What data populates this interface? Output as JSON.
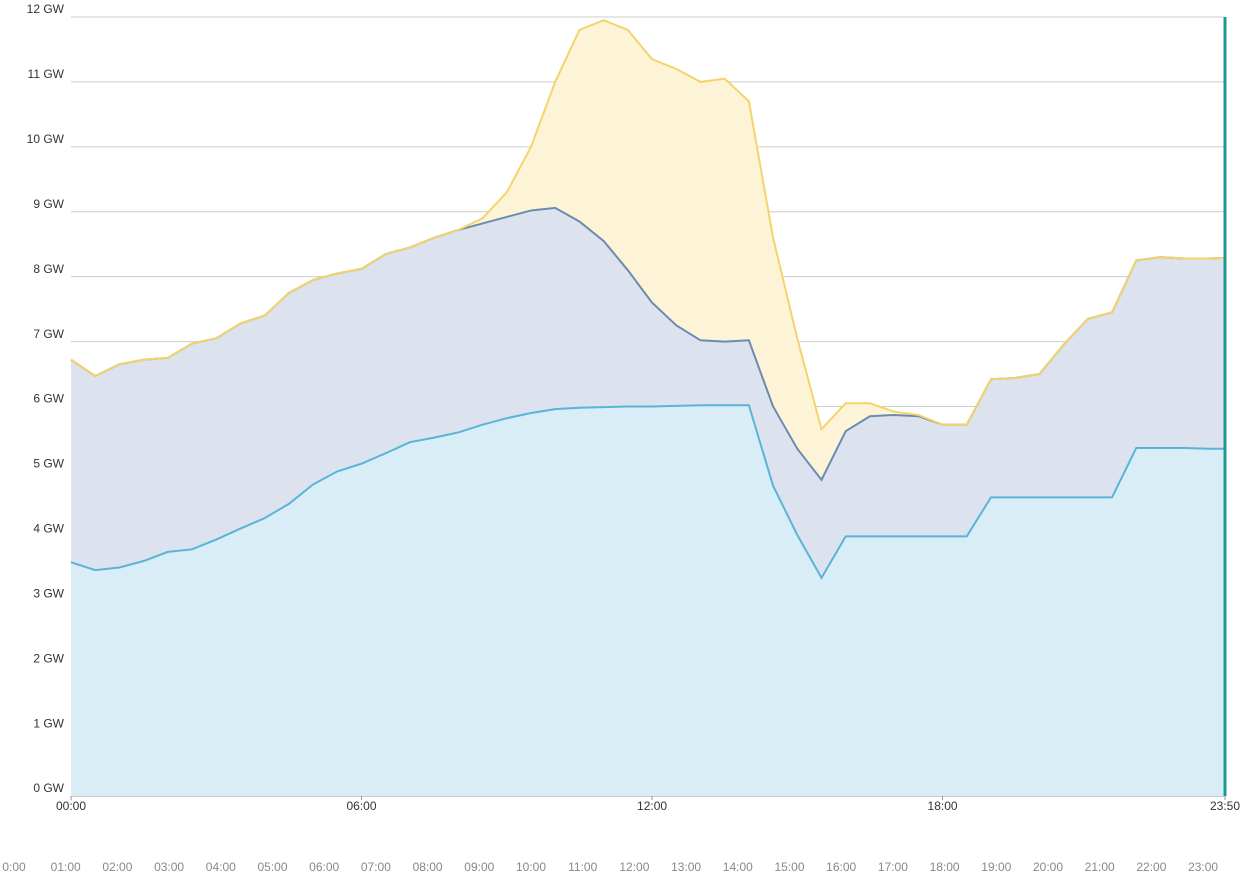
{
  "chart_data": {
    "type": "stacked_area",
    "x": [
      "00:00",
      "00:30",
      "01:00",
      "01:30",
      "02:00",
      "02:30",
      "03:00",
      "03:30",
      "04:00",
      "04:30",
      "05:00",
      "05:30",
      "06:00",
      "06:30",
      "07:00",
      "07:30",
      "08:00",
      "08:30",
      "09:00",
      "09:30",
      "10:00",
      "10:30",
      "11:00",
      "11:30",
      "12:00",
      "12:30",
      "13:00",
      "13:30",
      "14:00",
      "14:30",
      "15:00",
      "15:30",
      "16:00",
      "16:30",
      "17:00",
      "17:30",
      "18:00",
      "18:30",
      "19:00",
      "19:30",
      "20:00",
      "20:30",
      "21:00",
      "21:30",
      "22:00",
      "22:30",
      "23:00",
      "23:30",
      "23:50"
    ],
    "series": [
      {
        "color": "#5ab4d6",
        "fill": "#d9edf7",
        "values": [
          3.6,
          3.48,
          3.52,
          3.62,
          3.76,
          3.8,
          3.95,
          4.12,
          4.28,
          4.5,
          4.8,
          5.0,
          5.12,
          5.28,
          5.45,
          5.52,
          5.6,
          5.72,
          5.82,
          5.9,
          5.96,
          5.98,
          5.99,
          6.0,
          6.0,
          6.01,
          6.02,
          6.02,
          6.02,
          4.78,
          4.02,
          3.36,
          4.0,
          4.0,
          4.0,
          4.0,
          4.0,
          4.0,
          4.6,
          4.6,
          4.6,
          4.6,
          4.6,
          4.6,
          5.36,
          5.36,
          5.36,
          5.35,
          5.35
        ]
      },
      {
        "color": "#6a8cb0",
        "fill": "#dde3ee",
        "values": [
          3.12,
          2.99,
          3.13,
          3.1,
          2.99,
          3.17,
          3.1,
          3.16,
          3.12,
          3.25,
          3.15,
          3.05,
          3.0,
          3.07,
          3.0,
          3.08,
          3.12,
          3.1,
          3.1,
          3.12,
          3.1,
          2.87,
          2.56,
          2.1,
          1.6,
          1.24,
          1.0,
          0.98,
          1.0,
          1.22,
          1.33,
          1.51,
          1.62,
          1.85,
          1.87,
          1.85,
          1.72,
          1.72,
          1.82,
          1.84,
          1.9,
          2.35,
          2.75,
          2.85,
          2.89,
          2.94,
          2.92,
          2.93,
          2.94
        ]
      },
      {
        "color": "#f4d46a",
        "fill": "#fdf4d8",
        "values": [
          0,
          0,
          0,
          0,
          0,
          0,
          0,
          0,
          0,
          0,
          0,
          0,
          0,
          0,
          0,
          0,
          0,
          0.08,
          0.38,
          0.98,
          1.94,
          2.95,
          3.4,
          3.7,
          3.75,
          3.95,
          3.98,
          4.05,
          3.68,
          2.6,
          1.7,
          0.78,
          0.43,
          0.2,
          0.05,
          0.02,
          0,
          0,
          0,
          0,
          0,
          0,
          0,
          0,
          0,
          0,
          0,
          0,
          0
        ]
      }
    ],
    "xlim": [
      "00:00",
      "23:50"
    ],
    "xticks": [
      "00:00",
      "06:00",
      "12:00",
      "18:00",
      "23:50"
    ],
    "ylim": [
      0,
      12
    ],
    "yticks": [
      {
        "value": 0,
        "label": "0 GW"
      },
      {
        "value": 1,
        "label": "1 GW"
      },
      {
        "value": 2,
        "label": "2 GW"
      },
      {
        "value": 3,
        "label": "3 GW"
      },
      {
        "value": 4,
        "label": "4 GW"
      },
      {
        "value": 5,
        "label": "5 GW"
      },
      {
        "value": 6,
        "label": "6 GW"
      },
      {
        "value": 7,
        "label": "7 GW"
      },
      {
        "value": 8,
        "label": "8 GW"
      },
      {
        "value": 9,
        "label": "9 GW"
      },
      {
        "value": 10,
        "label": "10 GW"
      },
      {
        "value": 11,
        "label": "11 GW"
      },
      {
        "value": 12,
        "label": "12 GW"
      }
    ],
    "grid": true,
    "navigator_labels": [
      "0:00",
      "01:00",
      "02:00",
      "03:00",
      "04:00",
      "05:00",
      "06:00",
      "07:00",
      "08:00",
      "09:00",
      "10:00",
      "11:00",
      "12:00",
      "13:00",
      "14:00",
      "15:00",
      "16:00",
      "17:00",
      "18:00",
      "19:00",
      "20:00",
      "21:00",
      "22:00",
      "23:00"
    ]
  }
}
